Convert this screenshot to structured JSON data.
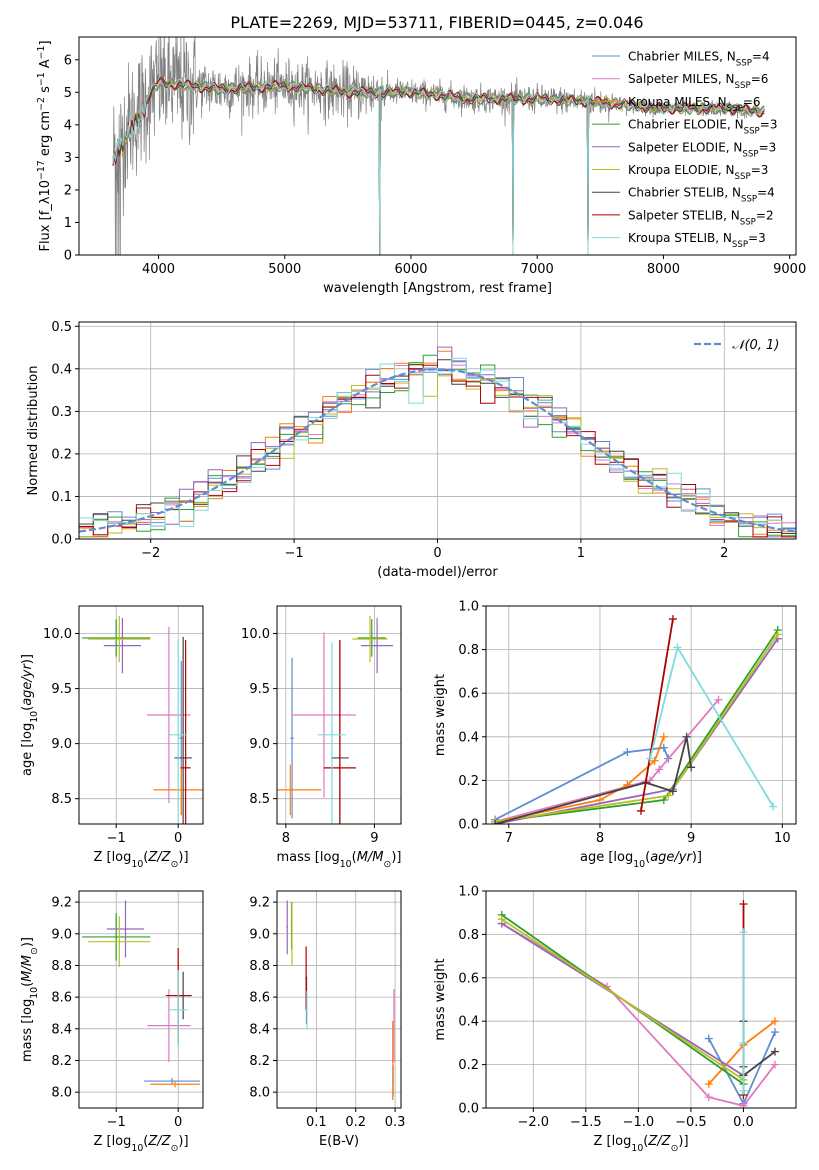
{
  "figure_title": "PLATE=2269, MJD=53711, FIBERID=0445, z=0.046",
  "colors": {
    "Chabrier MILES": "#5f8dd3",
    "Salpeter MILES": "#e377c2",
    "Kroupa MILES": "#ff7f0e",
    "Chabrier ELODIE": "#2ca02c",
    "Salpeter ELODIE": "#9467bd",
    "Kroupa ELODIE": "#bcbd22",
    "Chabrier STELIB": "#444444",
    "Salpeter STELIB": "#b00000",
    "Kroupa STELIB": "#7fdbdb",
    "data": "#808080",
    "normal": "#5f8dd3"
  },
  "chart_data": [
    {
      "id": "spectrum",
      "type": "line",
      "xlabel": "wavelength [Angstrom, rest frame]",
      "ylabel": "Flux [f_λ10^-17 erg cm^-2 s^-1 A^-1]",
      "xlim": [
        3370,
        9050
      ],
      "ylim": [
        0,
        6.7
      ],
      "xticks": [
        4000,
        5000,
        6000,
        7000,
        8000,
        9000
      ],
      "yticks": [
        0,
        1,
        2,
        3,
        4,
        5,
        6
      ],
      "grid": false,
      "legend_position": "right",
      "legend": [
        {
          "model": "Chabrier MILES",
          "nssp": "4"
        },
        {
          "model": "Salpeter MILES",
          "nssp": "6"
        },
        {
          "model": "Kroupa MILES",
          "nssp": "6"
        },
        {
          "model": "Chabrier ELODIE",
          "nssp": "3"
        },
        {
          "model": "Salpeter ELODIE",
          "nssp": "3"
        },
        {
          "model": "Kroupa ELODIE",
          "nssp": "3"
        },
        {
          "model": "Chabrier STELIB",
          "nssp": "4"
        },
        {
          "model": "Salpeter STELIB",
          "nssp": "2"
        },
        {
          "model": "Kroupa STELIB",
          "nssp": "3"
        }
      ],
      "wavelength_range": [
        3640,
        8800
      ],
      "continuum_anchors": [
        [
          3640,
          3.2
        ],
        [
          3800,
          4.2
        ],
        [
          4000,
          5.3
        ],
        [
          4500,
          5.1
        ],
        [
          5000,
          5.2
        ],
        [
          5500,
          5.0
        ],
        [
          6000,
          5.0
        ],
        [
          6500,
          4.8
        ],
        [
          7000,
          4.8
        ],
        [
          7500,
          4.7
        ],
        [
          8000,
          4.5
        ],
        [
          8500,
          4.5
        ],
        [
          8800,
          4.4
        ]
      ],
      "masked_gaps": [
        5750,
        6810,
        7400
      ]
    },
    {
      "id": "residuals",
      "type": "histogram",
      "xlabel": "(data-model)/error",
      "ylabel": "Normed distribution",
      "xlim": [
        -2.5,
        2.5
      ],
      "ylim": [
        0,
        0.51
      ],
      "xticks": [
        -2,
        -1,
        0,
        1,
        2
      ],
      "yticks": [
        0.0,
        0.1,
        0.2,
        0.3,
        0.4,
        0.5
      ],
      "grid": true,
      "legend_position": "upper right",
      "legend": [
        "𝒩(0, 1)"
      ],
      "bin_width": 0.1
    },
    {
      "id": "age_vs_Z",
      "type": "errorbar",
      "xlabel": "Z [log10(Z/Z⊙)]",
      "ylabel": "age [log10(age/yr)]",
      "xlim": [
        -1.6,
        0.4
      ],
      "ylim": [
        8.27,
        10.25
      ],
      "xticks": [
        -1,
        0
      ],
      "yticks": [
        8.5,
        9.0,
        9.5,
        10.0
      ],
      "grid": true,
      "points": [
        {
          "model": "Chabrier MILES",
          "x": 0.05,
          "xerr": 0.03,
          "y": 9.05,
          "yerr": 0.7
        },
        {
          "model": "Salpeter MILES",
          "x": -0.15,
          "xerr": 0.35,
          "y": 9.26,
          "yerr": 0.8
        },
        {
          "model": "Kroupa MILES",
          "x": 0.05,
          "xerr": 0.45,
          "y": 8.58,
          "yerr": 0.23
        },
        {
          "model": "Chabrier ELODIE",
          "x": -1.0,
          "xerr": 0.55,
          "y": 9.96,
          "yerr": 0.17
        },
        {
          "model": "Salpeter ELODIE",
          "x": -0.9,
          "xerr": 0.3,
          "y": 9.89,
          "yerr": 0.25
        },
        {
          "model": "Kroupa ELODIE",
          "x": -0.95,
          "xerr": 0.5,
          "y": 9.95,
          "yerr": 0.21
        },
        {
          "model": "Chabrier STELIB",
          "x": 0.08,
          "xerr": 0.14,
          "y": 8.87,
          "yerr": 1.1
        },
        {
          "model": "Salpeter STELIB",
          "x": 0.12,
          "xerr": 0.08,
          "y": 8.78,
          "yerr": 1.16
        },
        {
          "model": "Kroupa STELIB",
          "x": 0.0,
          "xerr": 0.14,
          "y": 9.08,
          "yerr": 0.86
        }
      ]
    },
    {
      "id": "age_vs_mass",
      "type": "errorbar",
      "xlabel": "mass [log10(M/M⊙)]",
      "xlim": [
        7.9,
        9.3
      ],
      "ylim": [
        8.27,
        10.25
      ],
      "xticks": [
        8,
        9
      ],
      "yticks": [
        8.5,
        9.0,
        9.5,
        10.0
      ],
      "grid": true,
      "points": [
        {
          "model": "Chabrier MILES",
          "x": 8.07,
          "xerr": 0.02,
          "y": 9.05,
          "yerr": 0.73
        },
        {
          "model": "Salpeter MILES",
          "x": 8.43,
          "xerr": 0.36,
          "y": 9.26,
          "yerr": 0.75
        },
        {
          "model": "Kroupa MILES",
          "x": 8.05,
          "xerr": 0.35,
          "y": 8.58,
          "yerr": 0.23
        },
        {
          "model": "Chabrier ELODIE",
          "x": 8.97,
          "xerr": 0.16,
          "y": 9.96,
          "yerr": 0.17
        },
        {
          "model": "Salpeter ELODIE",
          "x": 9.03,
          "xerr": 0.18,
          "y": 9.89,
          "yerr": 0.25
        },
        {
          "model": "Kroupa ELODIE",
          "x": 8.95,
          "xerr": 0.2,
          "y": 9.95,
          "yerr": 0.21
        },
        {
          "model": "Chabrier STELIB",
          "x": 8.61,
          "xerr": 0.1,
          "y": 8.87,
          "yerr": 1.07
        },
        {
          "model": "Salpeter STELIB",
          "x": 8.61,
          "xerr": 0.18,
          "y": 8.78,
          "yerr": 1.16
        },
        {
          "model": "Kroupa STELIB",
          "x": 8.52,
          "xerr": 0.16,
          "y": 9.08,
          "yerr": 0.84
        }
      ]
    },
    {
      "id": "weight_vs_age",
      "type": "line",
      "xlabel": "age [log10(age/yr)]",
      "ylabel": "mass weight",
      "xlim": [
        6.75,
        10.15
      ],
      "ylim": [
        0,
        1.0
      ],
      "xticks": [
        7,
        8,
        9,
        10
      ],
      "yticks": [
        0.0,
        0.2,
        0.4,
        0.6,
        0.8,
        1.0
      ],
      "grid": true,
      "series": [
        {
          "model": "Chabrier MILES",
          "x": [
            6.85,
            8.3,
            8.7,
            8.75
          ],
          "y": [
            0.02,
            0.33,
            0.35,
            0.3
          ]
        },
        {
          "model": "Salpeter MILES",
          "x": [
            6.85,
            8.55,
            8.65,
            9.3
          ],
          "y": [
            0.01,
            0.2,
            0.25,
            0.57
          ]
        },
        {
          "model": "Kroupa MILES",
          "x": [
            6.85,
            8.0,
            8.3,
            8.6,
            8.7
          ],
          "y": [
            0.01,
            0.11,
            0.18,
            0.29,
            0.4
          ]
        },
        {
          "model": "Chabrier ELODIE",
          "x": [
            6.85,
            8.7,
            9.95
          ],
          "y": [
            0.01,
            0.11,
            0.89
          ]
        },
        {
          "model": "Salpeter ELODIE",
          "x": [
            6.85,
            8.8,
            9.95
          ],
          "y": [
            0.0,
            0.16,
            0.85
          ]
        },
        {
          "model": "Kroupa ELODIE",
          "x": [
            6.85,
            8.75,
            9.95
          ],
          "y": [
            0.01,
            0.13,
            0.87
          ]
        },
        {
          "model": "Chabrier STELIB",
          "x": [
            6.85,
            8.5,
            8.8,
            8.95,
            9.0
          ],
          "y": [
            0.0,
            0.19,
            0.15,
            0.4,
            0.26
          ]
        },
        {
          "model": "Salpeter STELIB",
          "x": [
            8.45,
            8.8
          ],
          "y": [
            0.06,
            0.94
          ]
        },
        {
          "model": "Kroupa STELIB",
          "x": [
            8.55,
            8.85,
            9.9
          ],
          "y": [
            0.3,
            0.81,
            0.08
          ]
        }
      ]
    },
    {
      "id": "mass_vs_Z",
      "type": "errorbar",
      "xlabel": "Z [log10(Z/Z⊙)]",
      "ylabel": "mass [log10(M/M⊙)]",
      "xlim": [
        -1.6,
        0.4
      ],
      "ylim": [
        7.9,
        9.27
      ],
      "xticks": [
        -1,
        0
      ],
      "yticks": [
        8.0,
        8.2,
        8.4,
        8.6,
        8.8,
        9.0,
        9.2
      ],
      "grid": true,
      "points": [
        {
          "model": "Chabrier MILES",
          "x": -0.1,
          "xerr": 0.45,
          "y": 8.07,
          "yerr": 0.02
        },
        {
          "model": "Salpeter MILES",
          "x": -0.15,
          "xerr": 0.35,
          "y": 8.42,
          "yerr": 0.23
        },
        {
          "model": "Kroupa MILES",
          "x": -0.05,
          "xerr": 0.4,
          "y": 8.05,
          "yerr": 0.02
        },
        {
          "model": "Chabrier ELODIE",
          "x": -1.0,
          "xerr": 0.55,
          "y": 8.98,
          "yerr": 0.15
        },
        {
          "model": "Salpeter ELODIE",
          "x": -0.85,
          "xerr": 0.3,
          "y": 9.03,
          "yerr": 0.18
        },
        {
          "model": "Kroupa ELODIE",
          "x": -0.95,
          "xerr": 0.5,
          "y": 8.95,
          "yerr": 0.16
        },
        {
          "model": "Chabrier STELIB",
          "x": 0.08,
          "xerr": 0.14,
          "y": 8.61,
          "yerr": 0.15
        },
        {
          "model": "Salpeter STELIB",
          "x": 0.0,
          "xerr": 0.2,
          "y": 8.61,
          "yerr": 0.3
        },
        {
          "model": "Kroupa STELIB",
          "x": 0.0,
          "xerr": 0.15,
          "y": 8.52,
          "yerr": 0.25
        }
      ]
    },
    {
      "id": "mass_vs_ebv",
      "type": "errorbar",
      "xlabel": "E(B-V)",
      "xlim": [
        0.0,
        0.315
      ],
      "ylim": [
        7.9,
        9.27
      ],
      "xticks": [
        0.1,
        0.2,
        0.3
      ],
      "yticks": [
        8.0,
        8.2,
        8.4,
        8.6,
        8.8,
        9.0,
        9.2
      ],
      "grid": true,
      "points": [
        {
          "model": "Chabrier MILES",
          "x": 0.295,
          "xerr": 0.002,
          "y": 8.07,
          "yerr": 0.1
        },
        {
          "model": "Salpeter MILES",
          "x": 0.297,
          "xerr": 0.002,
          "y": 8.42,
          "yerr": 0.23
        },
        {
          "model": "Kroupa MILES",
          "x": 0.294,
          "xerr": 0.002,
          "y": 8.2,
          "yerr": 0.25
        },
        {
          "model": "Chabrier ELODIE",
          "x": 0.037,
          "xerr": 0.002,
          "y": 9.05,
          "yerr": 0.15
        },
        {
          "model": "Salpeter ELODIE",
          "x": 0.026,
          "xerr": 0.002,
          "y": 9.04,
          "yerr": 0.17
        },
        {
          "model": "Kroupa ELODIE",
          "x": 0.038,
          "xerr": 0.002,
          "y": 9.0,
          "yerr": 0.2
        },
        {
          "model": "Chabrier STELIB",
          "x": 0.075,
          "xerr": 0.002,
          "y": 8.58,
          "yerr": 0.15
        },
        {
          "model": "Salpeter STELIB",
          "x": 0.074,
          "xerr": 0.002,
          "y": 8.72,
          "yerr": 0.2
        },
        {
          "model": "Kroupa STELIB",
          "x": 0.076,
          "xerr": 0.002,
          "y": 8.52,
          "yerr": 0.12
        }
      ]
    },
    {
      "id": "weight_vs_Z",
      "type": "line",
      "xlabel": "Z [log10(Z/Z⊙)]",
      "ylabel": "mass weight",
      "xlim": [
        -2.45,
        0.5
      ],
      "ylim": [
        0,
        1.0
      ],
      "xticks": [
        -2.0,
        -1.5,
        -1.0,
        -0.5,
        0.0
      ],
      "yticks": [
        0.0,
        0.2,
        0.4,
        0.6,
        0.8,
        1.0
      ],
      "grid": true,
      "series": [
        {
          "model": "Chabrier MILES",
          "x": [
            -0.33,
            0.0,
            0.3
          ],
          "y": [
            0.32,
            0.02,
            0.35
          ]
        },
        {
          "model": "Salpeter MILES",
          "x": [
            -2.3,
            -1.3,
            -0.33,
            0.0,
            0.3
          ],
          "y": [
            0.85,
            0.56,
            0.05,
            0.01,
            0.2
          ]
        },
        {
          "model": "Kroupa MILES",
          "x": [
            -0.33,
            0.0,
            0.3
          ],
          "y": [
            0.11,
            0.29,
            0.4
          ]
        },
        {
          "model": "Chabrier ELODIE",
          "x": [
            -2.3,
            0.0
          ],
          "y": [
            0.89,
            0.11
          ]
        },
        {
          "model": "Salpeter ELODIE",
          "x": [
            -2.3,
            0.0
          ],
          "y": [
            0.85,
            0.15
          ]
        },
        {
          "model": "Kroupa ELODIE",
          "x": [
            -2.3,
            0.0
          ],
          "y": [
            0.87,
            0.13
          ]
        },
        {
          "model": "Chabrier STELIB",
          "x": [
            0.0,
            0.0,
            0.0,
            0.3
          ],
          "y": [
            0.4,
            0.19,
            0.15,
            0.26
          ]
        },
        {
          "model": "Salpeter STELIB",
          "x": [
            0.0,
            0.0
          ],
          "y": [
            0.06,
            0.94
          ]
        },
        {
          "model": "Kroupa STELIB",
          "x": [
            0.0,
            0.0,
            0.0
          ],
          "y": [
            0.08,
            0.3,
            0.81
          ]
        }
      ]
    }
  ]
}
